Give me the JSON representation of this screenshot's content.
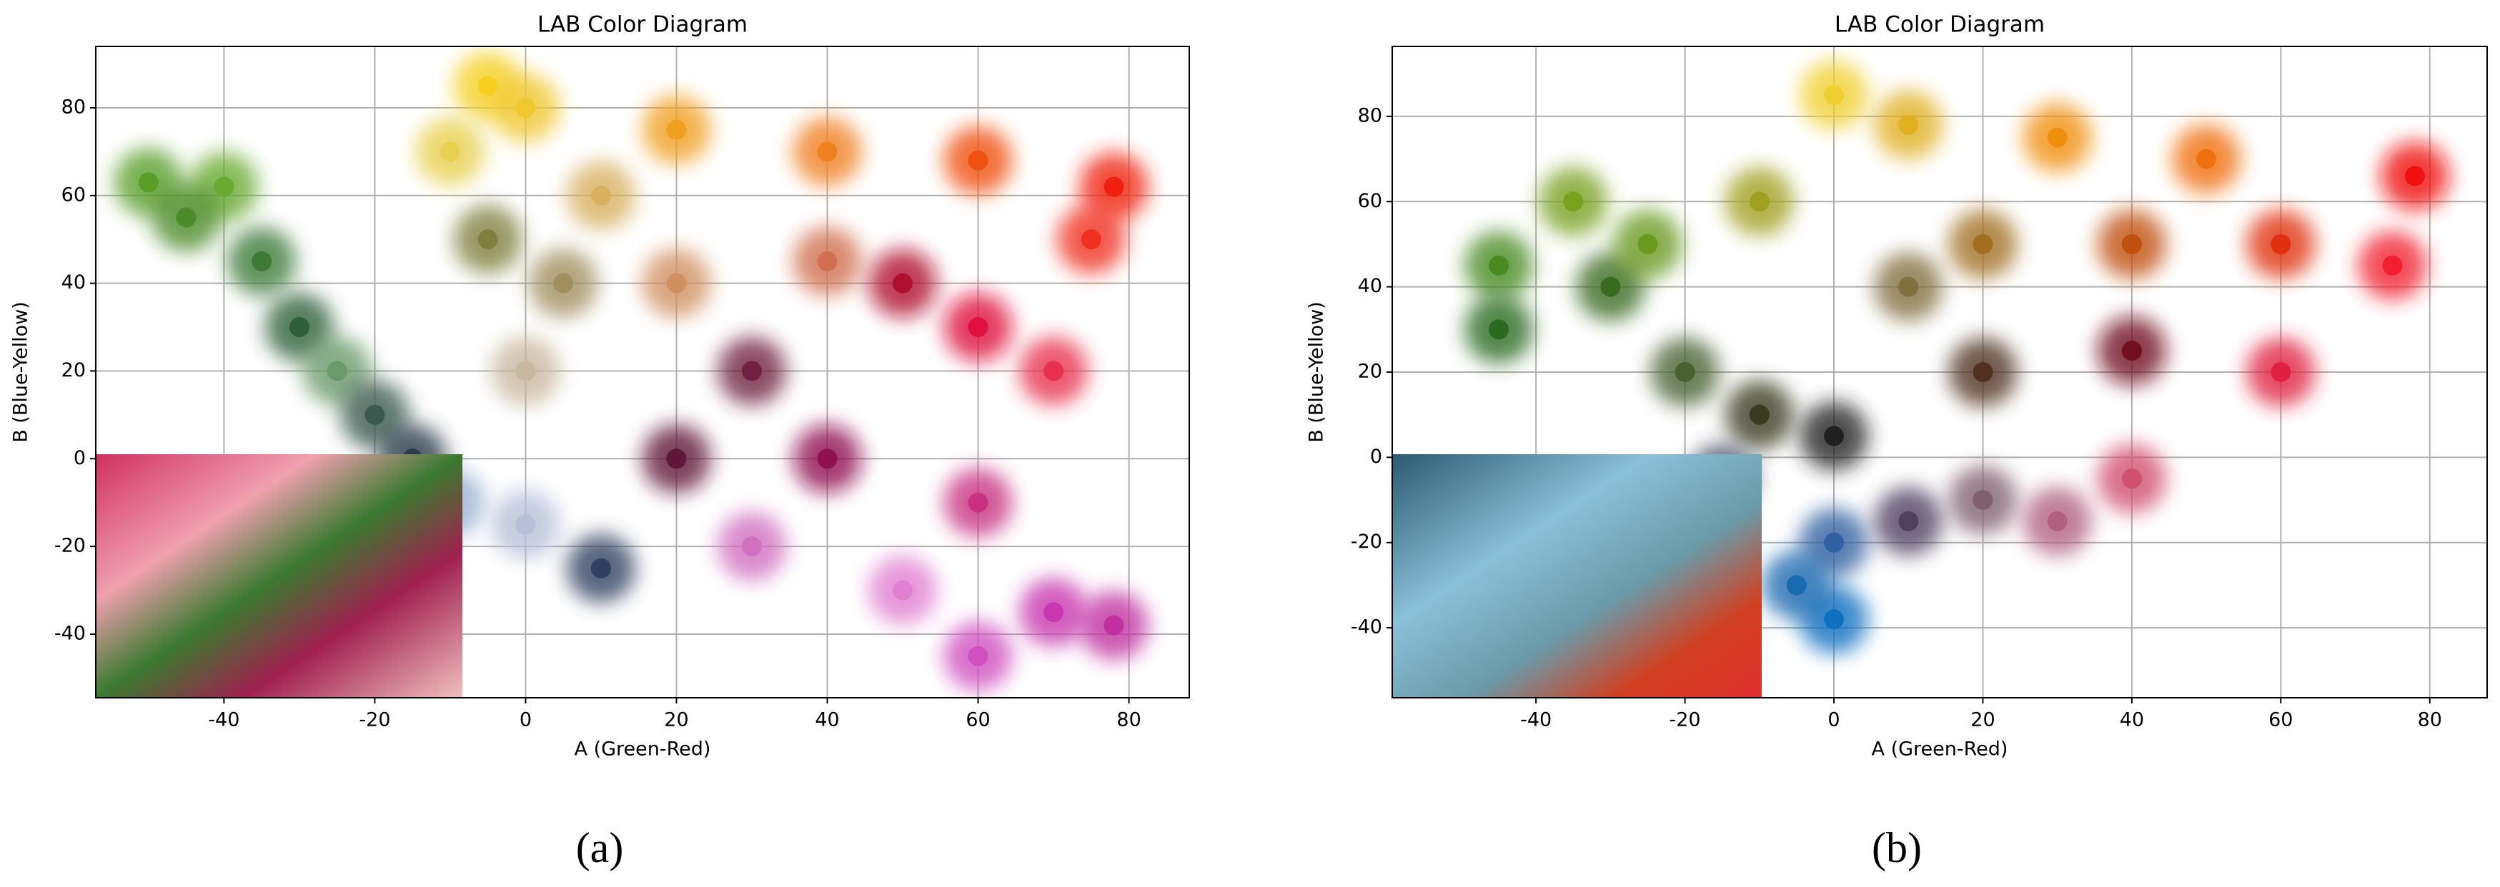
{
  "chart_data": [
    {
      "type": "scatter",
      "title": "LAB Color Diagram",
      "x_label": "A (Green-Red)",
      "y_label": "B (Blue-Yellow)",
      "caption": "(a)",
      "xlim": [
        -57,
        88
      ],
      "ylim": [
        -54.5,
        94
      ],
      "xticks": [
        -40,
        -20,
        0,
        20,
        40,
        60,
        80
      ],
      "yticks": [
        -40,
        -20,
        0,
        20,
        40,
        60,
        80
      ],
      "grid": true,
      "x": [
        -50,
        -40,
        -45,
        -35,
        -30,
        -25,
        -20,
        -15,
        -10,
        0,
        10,
        -5,
        0,
        -10,
        10,
        5,
        0,
        20,
        40,
        60,
        78,
        75,
        50,
        60,
        70,
        30,
        20,
        40,
        60,
        30,
        50,
        70,
        78,
        60,
        40,
        20,
        -5
      ],
      "y": [
        63,
        62,
        55,
        45,
        30,
        20,
        10,
        0,
        -10,
        -15,
        -25,
        85,
        80,
        70,
        60,
        40,
        20,
        75,
        70,
        68,
        62,
        50,
        40,
        30,
        20,
        20,
        0,
        0,
        -10,
        -20,
        -30,
        -35,
        -38,
        -45,
        45,
        40,
        50
      ],
      "colors": [
        "#5a9e2a",
        "#6aaa30",
        "#4e8a2c",
        "#3e7a3a",
        "#2e5e3a",
        "#6a9a6a",
        "#3a5a50",
        "#2a3a4a",
        "#9ab0d0",
        "#b8c0d8",
        "#304060",
        "#f5d020",
        "#f0c830",
        "#e8d050",
        "#d8b060",
        "#a09060",
        "#c8b8a0",
        "#f0a020",
        "#f08020",
        "#f05010",
        "#f02010",
        "#f03020",
        "#b01030",
        "#e01040",
        "#e83050",
        "#702040",
        "#601838",
        "#901050",
        "#c83080",
        "#d070c0",
        "#e080d0",
        "#c838b0",
        "#c030a0",
        "#d050c0",
        "#d07050",
        "#d09060",
        "#808040"
      ]
    },
    {
      "type": "scatter",
      "title": "LAB Color Diagram",
      "x_label": "A (Green-Red)",
      "y_label": "B (Blue-Yellow)",
      "caption": "(b)",
      "xlim": [
        -59.3,
        87.7
      ],
      "ylim": [
        -56.4,
        96.4
      ],
      "xticks": [
        -40,
        -20,
        0,
        20,
        40,
        60,
        80
      ],
      "yticks": [
        -40,
        -20,
        0,
        20,
        40,
        60,
        80
      ],
      "grid": true,
      "x": [
        -45,
        -35,
        -30,
        -20,
        -10,
        0,
        0,
        10,
        30,
        50,
        78,
        75,
        60,
        40,
        20,
        10,
        -10,
        20,
        40,
        60,
        -15,
        0,
        0,
        -5,
        10,
        20,
        30,
        40,
        -25,
        -45
      ],
      "y": [
        45,
        60,
        40,
        20,
        10,
        5,
        85,
        78,
        75,
        70,
        66,
        45,
        20,
        25,
        20,
        40,
        60,
        50,
        50,
        50,
        -5,
        -20,
        -38,
        -30,
        -15,
        -10,
        -15,
        -5,
        50,
        30
      ],
      "colors": [
        "#4a8a20",
        "#7aa020",
        "#3a6a20",
        "#4a6030",
        "#3a3a20",
        "#202020",
        "#f0d030",
        "#e0b020",
        "#f09010",
        "#f07010",
        "#f01010",
        "#f02030",
        "#e02040",
        "#701020",
        "#503020",
        "#807040",
        "#a0a020",
        "#a07020",
        "#c05010",
        "#e03010",
        "#404860",
        "#3060a0",
        "#1070c0",
        "#1a6ab0",
        "#504060",
        "#806070",
        "#b06080",
        "#d05070",
        "#6a9a20",
        "#2a6a20"
      ]
    }
  ]
}
